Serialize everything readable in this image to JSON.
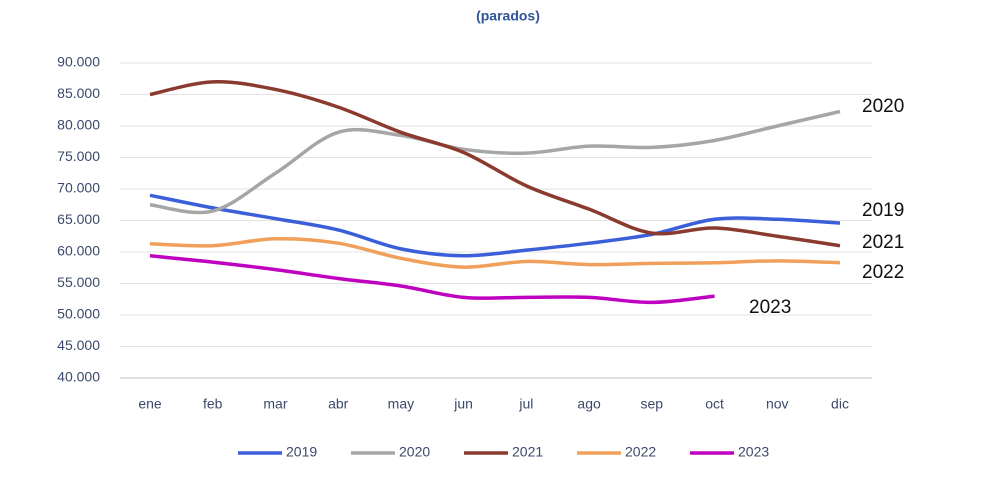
{
  "chart_data": {
    "type": "line",
    "subtitle": "(parados)",
    "categories": [
      "ene",
      "feb",
      "mar",
      "abr",
      "may",
      "jun",
      "jul",
      "ago",
      "sep",
      "oct",
      "nov",
      "dic"
    ],
    "series": [
      {
        "name": "2019",
        "color": "#3a5fd9",
        "values": [
          69000,
          67000,
          65300,
          63500,
          60500,
          59400,
          60300,
          61400,
          62800,
          65200,
          65200,
          64600
        ]
      },
      {
        "name": "2020",
        "color": "#a6a6a6",
        "values": [
          67500,
          66500,
          72500,
          79000,
          78500,
          76300,
          75700,
          76800,
          76600,
          77700,
          80000,
          82300
        ]
      },
      {
        "name": "2021",
        "color": "#8b3a2f",
        "values": [
          85000,
          87000,
          85800,
          83000,
          79000,
          75800,
          70500,
          66800,
          63000,
          63800,
          62500,
          61000
        ]
      },
      {
        "name": "2022",
        "color": "#f0a05a",
        "values": [
          61300,
          61000,
          62100,
          61400,
          59000,
          57600,
          58500,
          58000,
          58200,
          58300,
          58600,
          58300
        ]
      },
      {
        "name": "2023",
        "color": "#c000c0",
        "values": [
          59400,
          58400,
          57200,
          55800,
          54600,
          52800,
          52800,
          52800,
          52000,
          53000,
          null,
          null
        ]
      }
    ],
    "annotations": [
      "2020",
      "2019",
      "2021",
      "2022",
      "2023"
    ],
    "ylim": [
      40000,
      90000
    ],
    "yticks": [
      {
        "value": 40000,
        "label": "40.000"
      },
      {
        "value": 45000,
        "label": "45.000"
      },
      {
        "value": 50000,
        "label": "50.000"
      },
      {
        "value": 55000,
        "label": "55.000"
      },
      {
        "value": 60000,
        "label": "60.000"
      },
      {
        "value": 65000,
        "label": "65.000"
      },
      {
        "value": 70000,
        "label": "70.000"
      },
      {
        "value": 75000,
        "label": "75.000"
      },
      {
        "value": 80000,
        "label": "80.000"
      },
      {
        "value": 85000,
        "label": "85.000"
      },
      {
        "value": 90000,
        "label": "90.000"
      }
    ],
    "grid": true,
    "legend": "bottom"
  }
}
